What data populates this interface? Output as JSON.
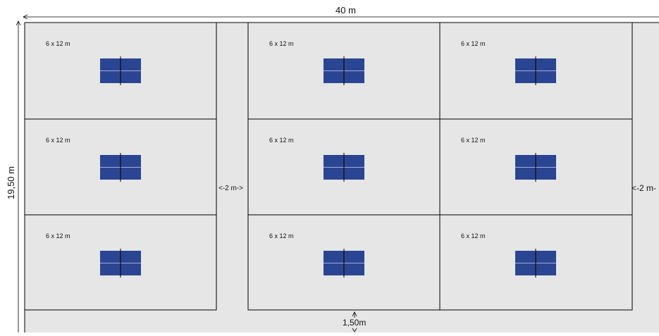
{
  "dimensions": {
    "overall_width": "40 m",
    "overall_height": "19,50 m",
    "aisle_gap": "<-2 m->",
    "edge_gap": "<-2 m-",
    "bottom_gap": "1,50m"
  },
  "courts": [
    {
      "label": "6 x 12 m"
    },
    {
      "label": "6 x 12 m"
    },
    {
      "label": "6 x 12 m"
    },
    {
      "label": "6 x 12 m"
    },
    {
      "label": "6 x 12 m"
    },
    {
      "label": "6 x 12 m"
    },
    {
      "label": "6 x 12 m"
    },
    {
      "label": "6 x 12 m"
    },
    {
      "label": "6 x 12 m"
    }
  ],
  "colors": {
    "floor": "#e6e6e6",
    "court_fill": "#e6e6e6",
    "court_line": "#000000",
    "table_blue": "#2a4592",
    "table_line": "#9fb0d8"
  }
}
